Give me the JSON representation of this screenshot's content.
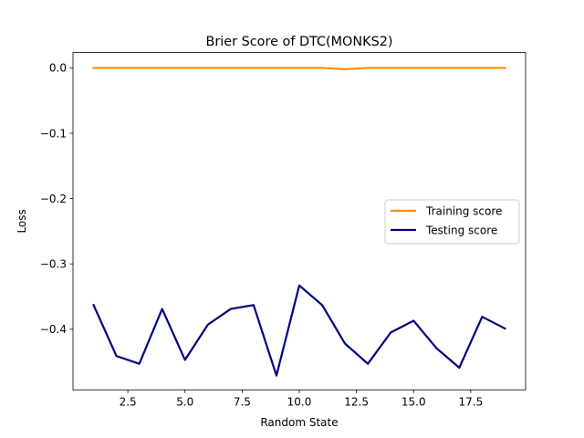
{
  "chart_data": {
    "type": "line",
    "title": "Brier Score of DTC(MONKS2)",
    "xlabel": "Random State",
    "ylabel": "Loss",
    "xlim": [
      0.1,
      19.9
    ],
    "ylim": [
      -0.4928,
      0.0235
    ],
    "xticks": [
      2.5,
      5.0,
      7.5,
      10.0,
      12.5,
      15.0,
      17.5
    ],
    "xtick_labels": [
      "2.5",
      "5.0",
      "7.5",
      "10.0",
      "12.5",
      "15.0",
      "17.5"
    ],
    "yticks": [
      0.0,
      -0.1,
      -0.2,
      -0.3,
      -0.4
    ],
    "ytick_labels": [
      "0.0",
      "−0.1",
      "−0.2",
      "−0.3",
      "−0.4"
    ],
    "grid": false,
    "legend_position": "center-right",
    "x": [
      1,
      2,
      3,
      4,
      5,
      6,
      7,
      8,
      9,
      10,
      11,
      12,
      13,
      14,
      15,
      16,
      17,
      18,
      19
    ],
    "series": [
      {
        "name": "Training score",
        "color": "#ff8c00",
        "values": [
          0.0,
          0.0,
          0.0,
          0.0,
          0.0,
          0.0,
          0.0,
          0.0,
          0.0,
          0.0,
          0.0,
          -0.002,
          0.0,
          0.0,
          0.0,
          0.0,
          0.0,
          0.0,
          0.0
        ]
      },
      {
        "name": "Testing score",
        "color": "#000080",
        "values": [
          -0.363,
          -0.441,
          -0.453,
          -0.369,
          -0.447,
          -0.393,
          -0.369,
          -0.363,
          -0.471,
          -0.333,
          -0.363,
          -0.422,
          -0.453,
          -0.405,
          -0.387,
          -0.429,
          -0.459,
          -0.381,
          -0.399
        ]
      }
    ]
  }
}
